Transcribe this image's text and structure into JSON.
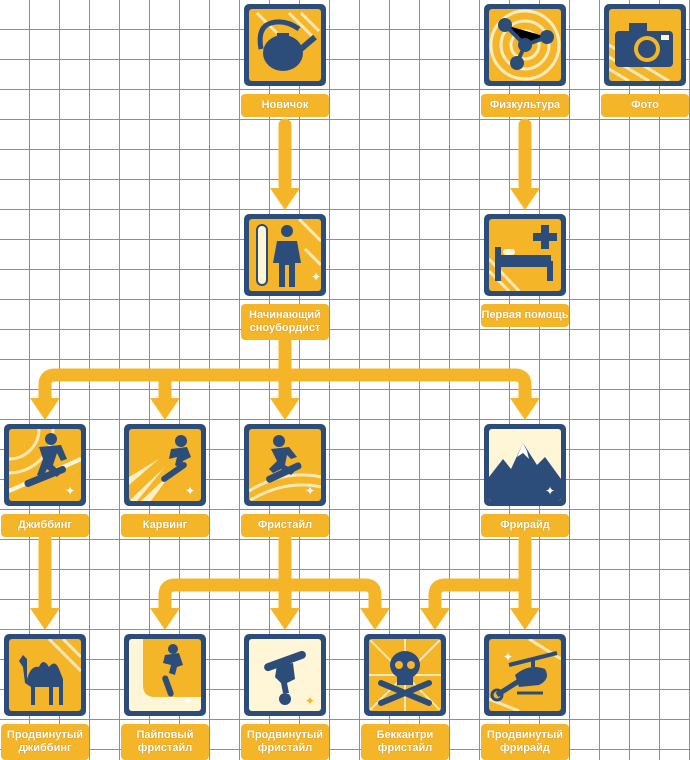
{
  "colors": {
    "accent": "#f4b529",
    "navy": "#2c4d7a",
    "grid": "#8f8f8f"
  },
  "nodes": {
    "novice": {
      "label": "Новичок",
      "icon": "kettle-icon"
    },
    "fitness": {
      "label": "Физкультура",
      "icon": "molecule-icon"
    },
    "photo": {
      "label": "Фото",
      "icon": "camera-icon"
    },
    "beginner": {
      "label": "Начинающий сноубордист",
      "icon": "snowboarder-standing-icon"
    },
    "firstaid": {
      "label": "Первая помощь",
      "icon": "hospital-bed-icon"
    },
    "jibbing": {
      "label": "Джиббинг",
      "icon": "rail-jib-icon"
    },
    "carving": {
      "label": "Карвинг",
      "icon": "carving-icon"
    },
    "freestyle": {
      "label": "Фристайл",
      "icon": "freestyle-jump-icon"
    },
    "freeride": {
      "label": "Фрирайд",
      "icon": "mountains-icon"
    },
    "adv_jibbing": {
      "label": "Продвинутый джиббинг",
      "icon": "camel-icon"
    },
    "pipe": {
      "label": "Пайповый фристайл",
      "icon": "halfpipe-icon"
    },
    "adv_freestyle": {
      "label": "Продвинутый фристайл",
      "icon": "flip-icon"
    },
    "backcountry": {
      "label": "Беккантри фристайл",
      "icon": "skull-crossbones-icon"
    },
    "adv_freeride": {
      "label": "Продвинутый фрирайд",
      "icon": "helicopter-icon"
    }
  }
}
